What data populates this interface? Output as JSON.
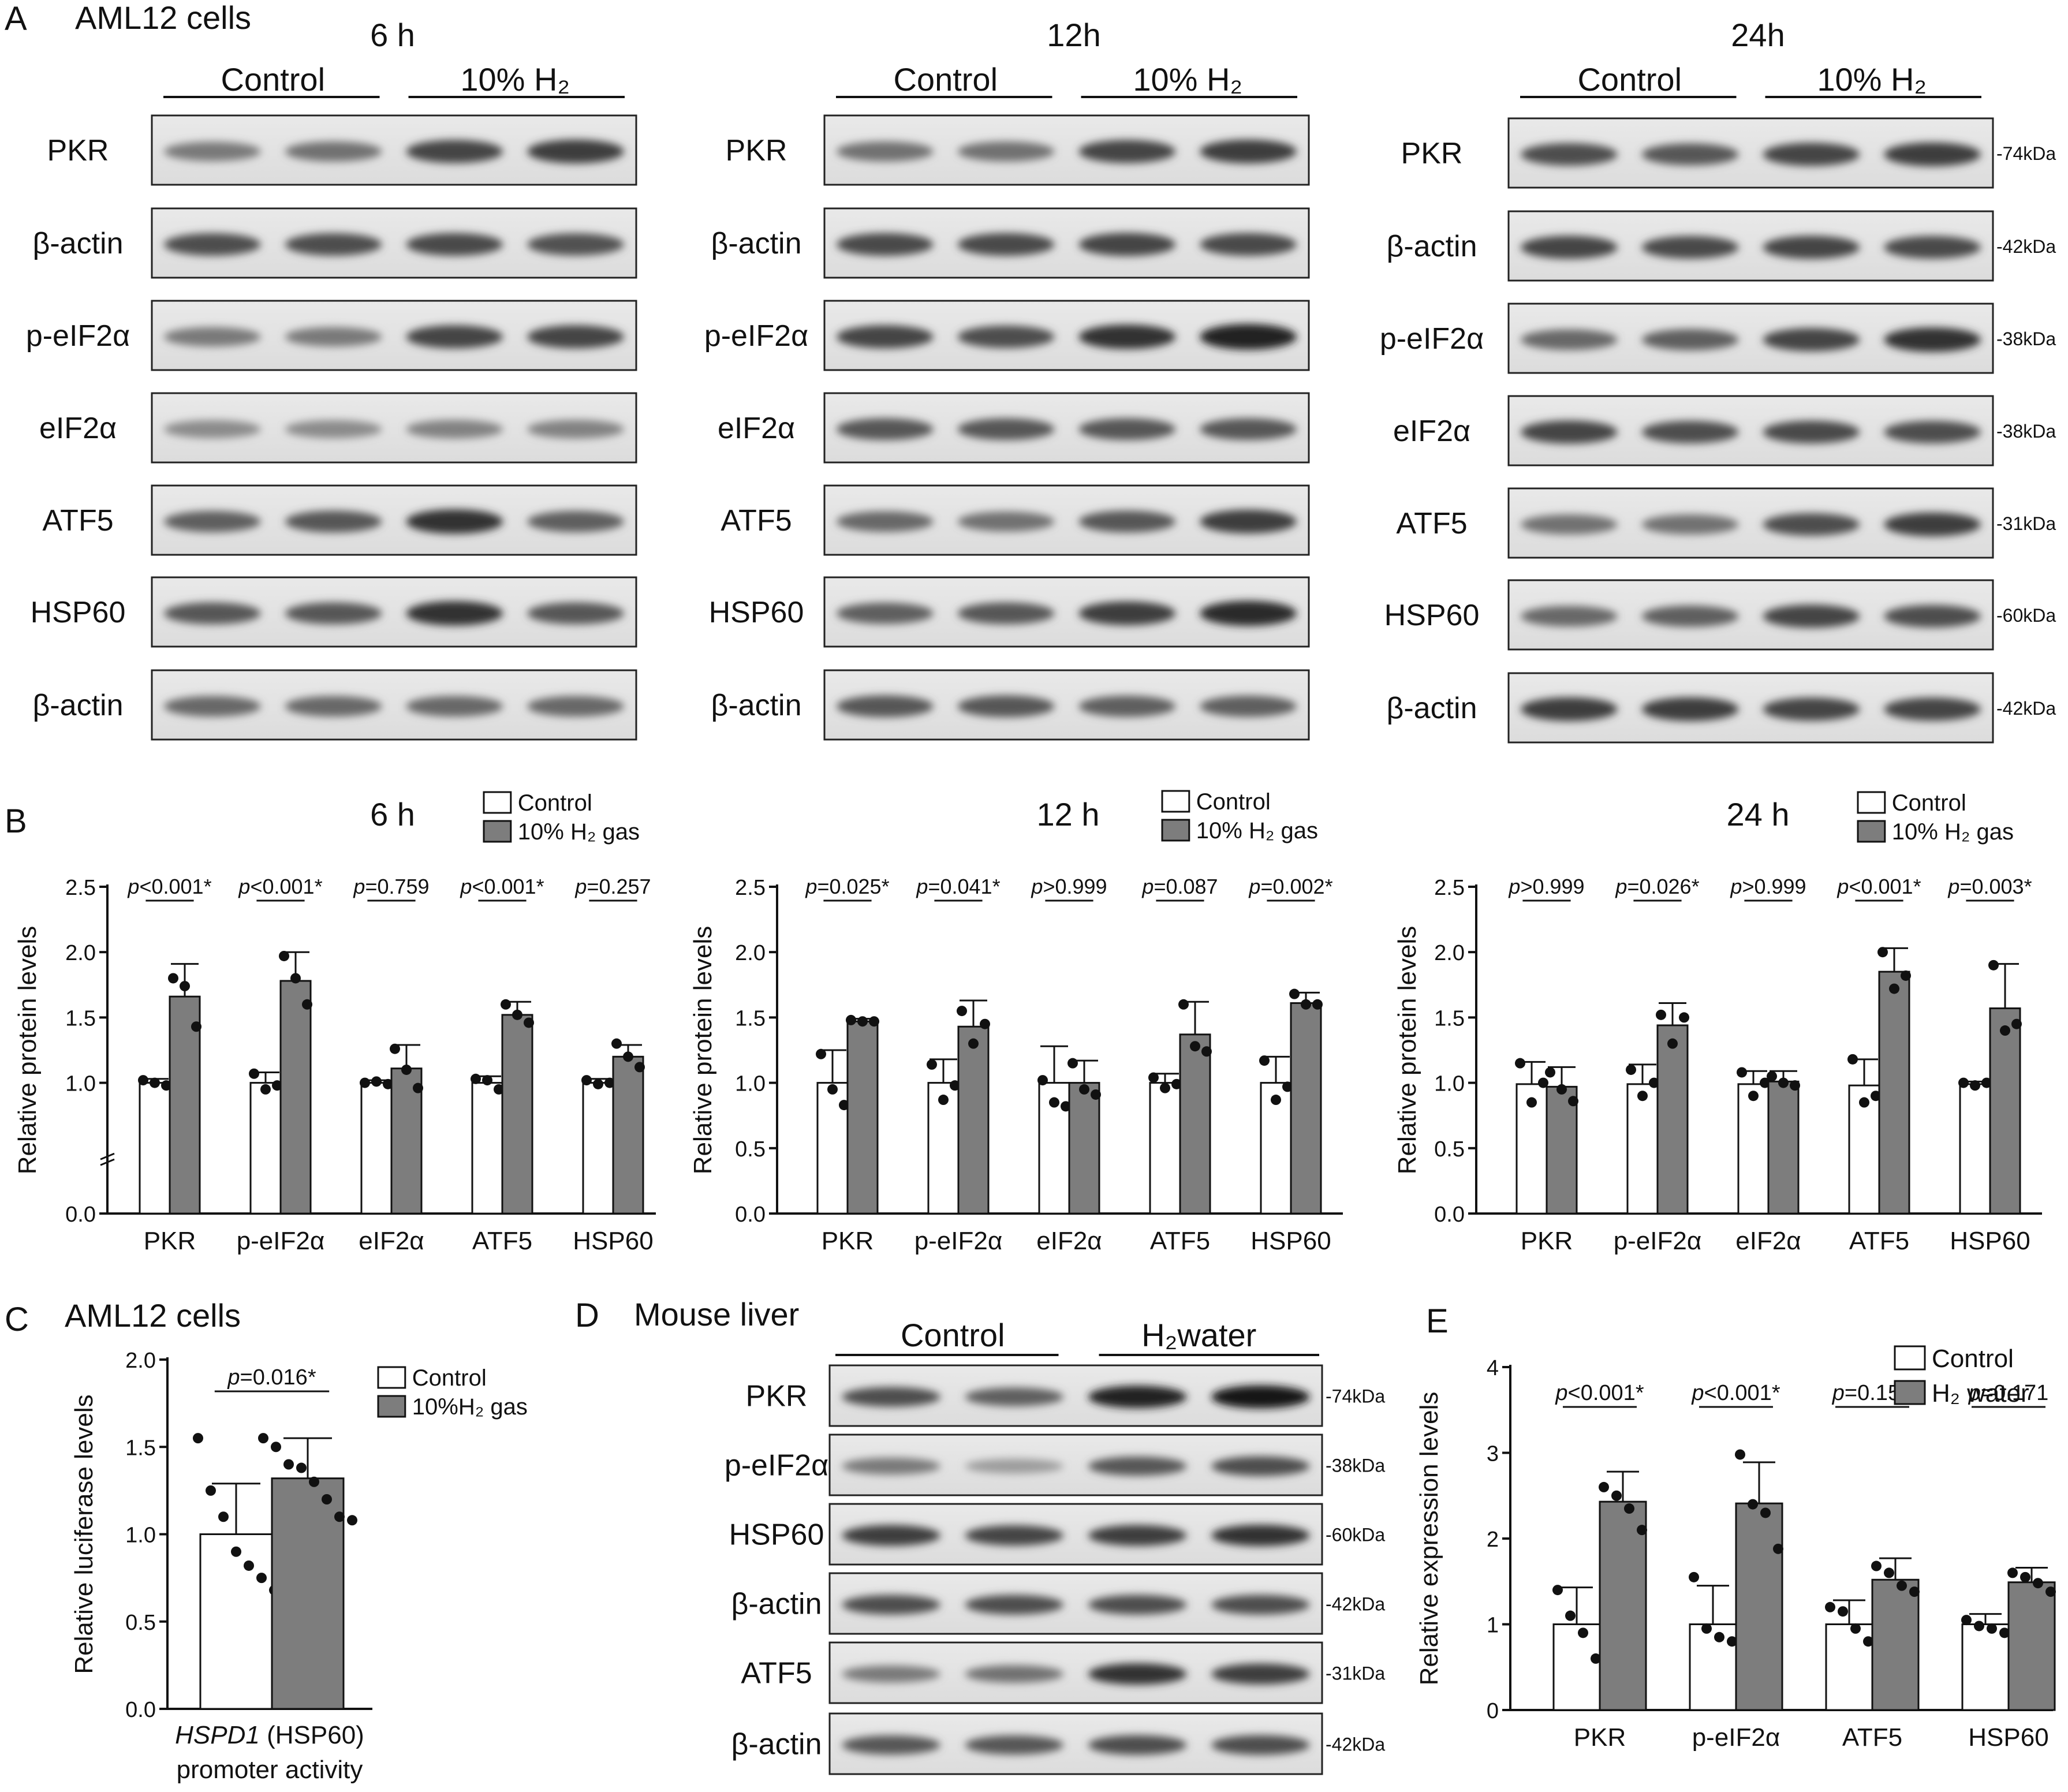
{
  "panel_letters": {
    "a": "A",
    "b": "B",
    "c": "C",
    "d": "D",
    "e": "E"
  },
  "panel_a": {
    "title": "AML12 cells",
    "kda_suffix": "kDa",
    "blocks": [
      {
        "time": "6 h",
        "groups": [
          "Control",
          "10% H₂"
        ],
        "rows": [
          {
            "name": "PKR",
            "intensity": [
              0.45,
              0.5,
              0.75,
              0.8
            ]
          },
          {
            "name": "β-actin",
            "intensity": [
              0.7,
              0.7,
              0.72,
              0.68
            ]
          },
          {
            "name": "p-eIF2α",
            "intensity": [
              0.45,
              0.45,
              0.75,
              0.75
            ]
          },
          {
            "name": "eIF2α",
            "intensity": [
              0.35,
              0.35,
              0.4,
              0.4
            ]
          },
          {
            "name": "ATF5",
            "intensity": [
              0.6,
              0.65,
              0.85,
              0.6
            ]
          },
          {
            "name": "HSP60",
            "intensity": [
              0.65,
              0.65,
              0.85,
              0.65
            ]
          },
          {
            "name": "β-actin",
            "intensity": [
              0.55,
              0.55,
              0.55,
              0.55
            ]
          }
        ]
      },
      {
        "time": "12h",
        "groups": [
          "Control",
          "10% H₂"
        ],
        "rows": [
          {
            "name": "PKR",
            "intensity": [
              0.5,
              0.5,
              0.75,
              0.8
            ]
          },
          {
            "name": "β-actin",
            "intensity": [
              0.72,
              0.72,
              0.75,
              0.72
            ]
          },
          {
            "name": "p-eIF2α",
            "intensity": [
              0.75,
              0.7,
              0.85,
              0.95
            ]
          },
          {
            "name": "eIF2α",
            "intensity": [
              0.65,
              0.65,
              0.65,
              0.65
            ]
          },
          {
            "name": "ATF5",
            "intensity": [
              0.55,
              0.5,
              0.65,
              0.8
            ]
          },
          {
            "name": "HSP60",
            "intensity": [
              0.6,
              0.65,
              0.8,
              0.9
            ]
          },
          {
            "name": "β-actin",
            "intensity": [
              0.65,
              0.65,
              0.6,
              0.6
            ]
          }
        ]
      },
      {
        "time": "24h",
        "groups": [
          "Control",
          "10% H₂"
        ],
        "rows": [
          {
            "name": "PKR",
            "mw": "-74",
            "intensity": [
              0.7,
              0.65,
              0.75,
              0.8
            ]
          },
          {
            "name": "β-actin",
            "mw": "-42",
            "intensity": [
              0.75,
              0.72,
              0.75,
              0.72
            ]
          },
          {
            "name": "p-eIF2α",
            "mw": "-38",
            "intensity": [
              0.55,
              0.6,
              0.75,
              0.85
            ]
          },
          {
            "name": "eIF2α",
            "mw": "-38",
            "intensity": [
              0.75,
              0.7,
              0.72,
              0.7
            ]
          },
          {
            "name": "ATF5",
            "mw": "-31",
            "intensity": [
              0.5,
              0.5,
              0.7,
              0.8
            ]
          },
          {
            "name": "HSP60",
            "mw": "-60",
            "intensity": [
              0.55,
              0.6,
              0.75,
              0.7
            ]
          },
          {
            "name": "β-actin",
            "mw": "-42",
            "intensity": [
              0.8,
              0.8,
              0.75,
              0.75
            ]
          }
        ]
      }
    ]
  },
  "panel_d": {
    "title": "Mouse liver",
    "groups": [
      "Control",
      "H₂water"
    ],
    "kda_suffix": "kDa",
    "rows": [
      {
        "name": "PKR",
        "mw": "-74",
        "intensity": [
          0.7,
          0.6,
          0.95,
          1.0
        ]
      },
      {
        "name": "p-eIF2α",
        "mw": "-38",
        "intensity": [
          0.45,
          0.25,
          0.65,
          0.7
        ]
      },
      {
        "name": "HSP60",
        "mw": "-60",
        "intensity": [
          0.8,
          0.75,
          0.8,
          0.85
        ]
      },
      {
        "name": "β-actin",
        "mw": "-42",
        "intensity": [
          0.7,
          0.7,
          0.7,
          0.7
        ]
      },
      {
        "name": "ATF5",
        "mw": "-31",
        "intensity": [
          0.45,
          0.5,
          0.85,
          0.8
        ]
      },
      {
        "name": "β-actin",
        "mw": "-42",
        "intensity": [
          0.65,
          0.65,
          0.7,
          0.7
        ]
      }
    ]
  },
  "chart_data": [
    {
      "id": "B-6h",
      "type": "bar",
      "title": "6 h",
      "categories": [
        "PKR",
        "p-eIF2α",
        "eIF2α",
        "ATF5",
        "HSP60"
      ],
      "ylabel": "Relative protein levels",
      "ylim": [
        0,
        2.5
      ],
      "yticks": [
        "0.0",
        "1.0",
        "1.5",
        "2.0",
        "2.5"
      ],
      "y_break": true,
      "legend": [
        "Control",
        "10% H₂ gas"
      ],
      "series": [
        {
          "name": "Control",
          "values": [
            1.0,
            1.0,
            1.0,
            1.0,
            1.0
          ],
          "err": [
            0.03,
            0.08,
            0.02,
            0.05,
            0.03
          ],
          "points": [
            [
              1.02,
              1.0,
              0.98
            ],
            [
              1.07,
              0.95,
              0.98
            ],
            [
              1.0,
              1.01,
              0.99
            ],
            [
              1.03,
              1.02,
              0.95
            ],
            [
              1.02,
              0.99,
              1.0
            ]
          ]
        },
        {
          "name": "10% H₂ gas",
          "values": [
            1.66,
            1.78,
            1.11,
            1.52,
            1.2
          ],
          "err": [
            0.25,
            0.22,
            0.18,
            0.1,
            0.09
          ],
          "points": [
            [
              1.8,
              1.74,
              1.43
            ],
            [
              1.97,
              1.8,
              1.6
            ],
            [
              1.26,
              1.1,
              0.96
            ],
            [
              1.6,
              1.52,
              1.46
            ],
            [
              1.3,
              1.2,
              1.12
            ]
          ]
        }
      ],
      "stats": [
        "p<0.001*",
        "p<0.001*",
        "p=0.759",
        "p<0.001*",
        "p=0.257"
      ]
    },
    {
      "id": "B-12h",
      "type": "bar",
      "title": "12 h",
      "categories": [
        "PKR",
        "p-eIF2α",
        "eIF2α",
        "ATF5",
        "HSP60"
      ],
      "ylabel": "Relative protein levels",
      "ylim": [
        0,
        2.5
      ],
      "yticks": [
        "0.0",
        "0.5",
        "1.0",
        "1.5",
        "2.0",
        "2.5"
      ],
      "y_break": false,
      "legend": [
        "Control",
        "10% H₂ gas"
      ],
      "series": [
        {
          "name": "Control",
          "values": [
            1.0,
            1.0,
            1.0,
            1.0,
            1.0
          ],
          "err": [
            0.25,
            0.18,
            0.28,
            0.07,
            0.2
          ],
          "points": [
            [
              1.22,
              0.95,
              0.83
            ],
            [
              1.14,
              0.87,
              0.98
            ],
            [
              1.02,
              0.85,
              0.82
            ],
            [
              1.04,
              0.96,
              0.99
            ],
            [
              1.17,
              0.87,
              0.97
            ]
          ]
        },
        {
          "name": "10% H₂ gas",
          "values": [
            1.47,
            1.43,
            1.0,
            1.37,
            1.61
          ],
          "err": [
            0.02,
            0.2,
            0.17,
            0.25,
            0.08
          ],
          "points": [
            [
              1.48,
              1.47,
              1.47
            ],
            [
              1.55,
              1.3,
              1.45
            ],
            [
              1.15,
              0.95,
              0.91
            ],
            [
              1.6,
              1.28,
              1.24
            ],
            [
              1.68,
              1.6,
              1.6
            ]
          ]
        }
      ],
      "stats": [
        "p=0.025*",
        "p=0.041*",
        "p>0.999",
        "p=0.087",
        "p=0.002*"
      ]
    },
    {
      "id": "B-24h",
      "type": "bar",
      "title": "24 h",
      "categories": [
        "PKR",
        "p-eIF2α",
        "eIF2α",
        "ATF5",
        "HSP60"
      ],
      "ylabel": "Relative protein levels",
      "ylim": [
        0,
        2.5
      ],
      "yticks": [
        "0.0",
        "0.5",
        "1.0",
        "1.5",
        "2.0",
        "2.5"
      ],
      "y_break": false,
      "legend": [
        "Control",
        "10% H₂ gas"
      ],
      "series": [
        {
          "name": "Control",
          "values": [
            0.99,
            0.99,
            0.99,
            0.98,
            0.99
          ],
          "err": [
            0.17,
            0.15,
            0.1,
            0.2,
            0.02
          ],
          "points": [
            [
              1.15,
              0.85,
              1.0
            ],
            [
              1.1,
              0.9,
              1.0
            ],
            [
              1.08,
              0.9,
              1.0
            ],
            [
              1.18,
              0.85,
              0.9
            ],
            [
              1.0,
              0.98,
              1.0
            ]
          ]
        },
        {
          "name": "10% H₂ gas",
          "values": [
            0.97,
            1.44,
            1.01,
            1.85,
            1.57
          ],
          "err": [
            0.15,
            0.17,
            0.08,
            0.18,
            0.34
          ],
          "points": [
            [
              1.08,
              0.95,
              0.86
            ],
            [
              1.52,
              1.3,
              1.5
            ],
            [
              1.05,
              1.0,
              0.98
            ],
            [
              2.0,
              1.72,
              1.82
            ],
            [
              1.9,
              1.4,
              1.45
            ]
          ]
        }
      ],
      "stats": [
        "p>0.999",
        "p=0.026*",
        "p>0.999",
        "p<0.001*",
        "p=0.003*"
      ]
    },
    {
      "id": "C",
      "type": "bar",
      "title": "AML12 cells",
      "categories": [
        "HSPD1 (HSP60) promoter activity"
      ],
      "xlabel_italic": "HSPD1",
      "xlabel_rest": " (HSP60)",
      "xlabel_line2": "promoter activity",
      "ylabel": "Relative luciferase levels",
      "ylim": [
        0,
        2.0
      ],
      "yticks": [
        "0.0",
        "0.5",
        "1.0",
        "1.5",
        "2.0"
      ],
      "legend": [
        "Control",
        "10%H₂ gas"
      ],
      "series": [
        {
          "name": "Control",
          "values": [
            1.0
          ],
          "err": [
            0.29
          ],
          "points": [
            [
              1.55,
              1.25,
              1.1,
              0.9,
              0.82,
              0.75,
              0.68
            ]
          ]
        },
        {
          "name": "10%H₂ gas",
          "values": [
            1.32
          ],
          "err": [
            0.23
          ],
          "points": [
            [
              1.55,
              1.5,
              1.4,
              1.38,
              1.3,
              1.2,
              1.1,
              1.08
            ]
          ]
        }
      ],
      "stats": [
        "p=0.016*"
      ]
    },
    {
      "id": "E",
      "type": "bar",
      "categories": [
        "PKR",
        "p-eIF2α",
        "ATF5",
        "HSP60"
      ],
      "ylabel": "Relative expression levels",
      "ylim": [
        0,
        4
      ],
      "yticks": [
        "0",
        "1",
        "2",
        "3",
        "4"
      ],
      "legend": [
        "Control",
        "H₂ water"
      ],
      "series": [
        {
          "name": "Control",
          "values": [
            1.0,
            1.0,
            1.0,
            1.0
          ],
          "err": [
            0.43,
            0.45,
            0.28,
            0.12
          ],
          "points": [
            [
              1.4,
              1.1,
              0.9,
              0.6
            ],
            [
              1.55,
              0.95,
              0.85,
              0.8
            ],
            [
              1.2,
              1.15,
              0.95,
              0.8
            ],
            [
              1.05,
              0.98,
              0.95,
              0.9
            ]
          ]
        },
        {
          "name": "H₂ water",
          "values": [
            2.43,
            2.41,
            1.52,
            1.49
          ],
          "err": [
            0.35,
            0.48,
            0.25,
            0.17
          ],
          "points": [
            [
              2.6,
              2.5,
              2.35,
              2.1
            ],
            [
              2.98,
              2.4,
              2.3,
              1.88
            ],
            [
              1.68,
              1.6,
              1.45,
              1.38
            ],
            [
              1.6,
              1.55,
              1.48,
              1.38
            ]
          ]
        }
      ],
      "stats": [
        "p<0.001*",
        "p<0.001*",
        "p=0.154",
        "p=0.171"
      ]
    }
  ]
}
